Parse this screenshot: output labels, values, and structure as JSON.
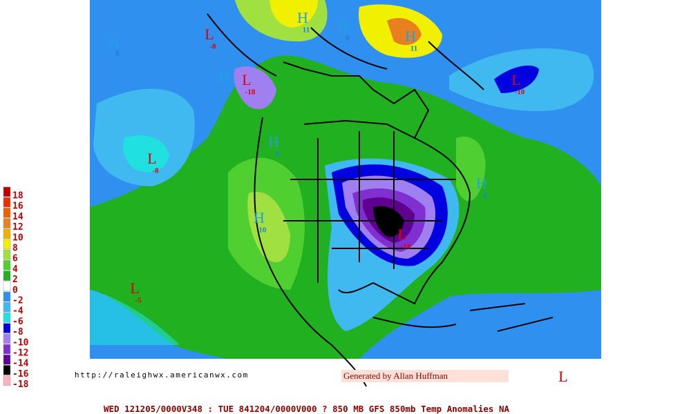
{
  "legend": [
    {
      "label": "18",
      "color": "#c00000"
    },
    {
      "label": "16",
      "color": "#e83000"
    },
    {
      "label": "14",
      "color": "#f06000"
    },
    {
      "label": "12",
      "color": "#e88020"
    },
    {
      "label": "10",
      "color": "#f0b000"
    },
    {
      "label": "8",
      "color": "#f0f000"
    },
    {
      "label": "6",
      "color": "#a0e040"
    },
    {
      "label": "4",
      "color": "#50d030"
    },
    {
      "label": "2",
      "color": "#20b020"
    },
    {
      "label": "0",
      "color": "#ffffff"
    },
    {
      "label": "-2",
      "color": "#3090f0"
    },
    {
      "label": "-4",
      "color": "#40b8f0"
    },
    {
      "label": "-6",
      "color": "#20e0e0"
    },
    {
      "label": "-8",
      "color": "#0000e0"
    },
    {
      "label": "-10",
      "color": "#a080f0"
    },
    {
      "label": "-12",
      "color": "#8030d0"
    },
    {
      "label": "-14",
      "color": "#600090"
    },
    {
      "label": "-16",
      "color": "#000000"
    },
    {
      "label": "-18",
      "color": "#ffb0c0"
    }
  ],
  "centers": [
    {
      "label": "H",
      "value": "8"
    },
    {
      "label": "L",
      "value": "-8"
    },
    {
      "label": "H",
      "value": "11"
    },
    {
      "label": "H",
      "value": "8"
    },
    {
      "label": "H",
      "value": "11"
    },
    {
      "label": "H"
    },
    {
      "label": "L",
      "value": "-18"
    },
    {
      "label": "L",
      "value": "-10"
    },
    {
      "label": "H",
      "value": "9"
    },
    {
      "label": "L",
      "value": "-8"
    },
    {
      "label": "H",
      "value": "6"
    },
    {
      "label": "H",
      "value": "10"
    },
    {
      "label": "L",
      "value": "-18"
    },
    {
      "label": "L",
      "value": "-5"
    },
    {
      "label": "L"
    }
  ],
  "url": "http://raleighwx.americanwx.com",
  "credit": "Generated by Allan Huffman",
  "footer": "WED 121205/0000V348 : TUE 841204/0000V000  ? 850 MB GFS 850mb Temp Anomalies NA"
}
